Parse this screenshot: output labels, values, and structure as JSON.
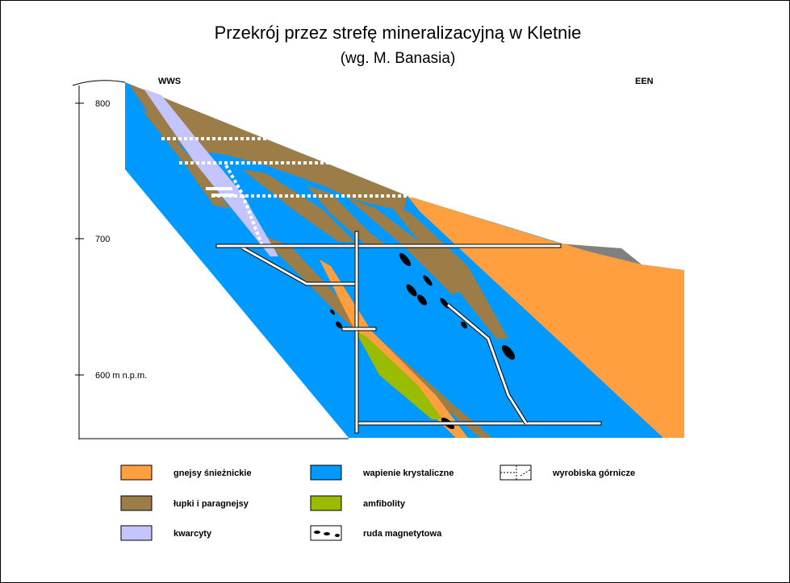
{
  "header": {
    "title": "Przekrój przez strefę mineralizacyjną w Kletnie",
    "subtitle": "(wg. M. Banasia)"
  },
  "sides": {
    "left": "WWS",
    "right": "EEN"
  },
  "axis": {
    "ticks": [
      "800",
      "700",
      "600 m n.p.m."
    ]
  },
  "legend": [
    {
      "label": "gnejsy śnieżnickie"
    },
    {
      "label": "łupki i paragnejsy"
    },
    {
      "label": "kwarcyty"
    },
    {
      "label": "wapienie krystaliczne"
    },
    {
      "label": "amfibolity"
    },
    {
      "label": "ruda magnetytowa"
    },
    {
      "label": "wyrobiska górnicze"
    }
  ]
}
